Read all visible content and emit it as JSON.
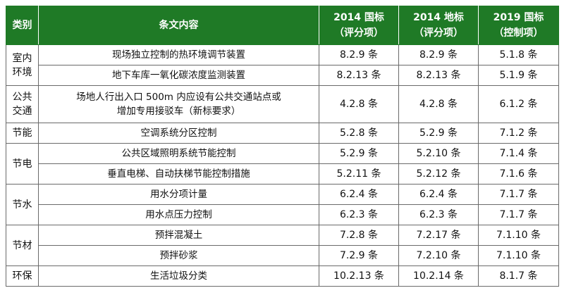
{
  "header": {
    "category": "类别",
    "content": "条文内容",
    "col1": [
      "2014 国标",
      "（评分项）"
    ],
    "col2": [
      "2014 地标",
      "（评分项）"
    ],
    "col3": [
      "2019 国标",
      "（控制项）"
    ]
  },
  "rows": [
    {
      "category": "室内环境",
      "content": "现场独立控制的热环境调节装置",
      "gb2014": "8.2.9 条",
      "db2014": "8.2.9 条",
      "gb2019": "5.1.8 条"
    },
    {
      "content": "地下车库一氧化碳浓度监测装置",
      "gb2014": "8.2.13 条",
      "db2014": "8.2.13 条",
      "gb2019": "5.1.9 条"
    },
    {
      "category": "公共交通",
      "content": "场地人行出入口 500m 内应设有公共交通站点或增加专用接驳车（新标要求）",
      "content_lines": [
        "场地人行出入口 500m 内应设有公共交通站点或",
        "增加专用接驳车（新标要求）"
      ],
      "gb2014": "4.2.8 条",
      "db2014": "4.2.8 条",
      "gb2019": "6.1.2 条"
    },
    {
      "category": "节能",
      "content": "空调系统分区控制",
      "gb2014": "5.2.8 条",
      "db2014": "5.2.9 条",
      "gb2019": "7.1.2 条"
    },
    {
      "category": "节电",
      "content": "公共区域照明系统节能控制",
      "gb2014": "5.2.9 条",
      "db2014": "5.2.10 条",
      "gb2019": "7.1.4 条"
    },
    {
      "content": "垂直电梯、自动扶梯节能控制措施",
      "gb2014": "5.2.11 条",
      "db2014": "5.2.12 条",
      "gb2019": "7.1.6 条"
    },
    {
      "category": "节水",
      "content": "用水分项计量",
      "gb2014": "6.2.4 条",
      "db2014": "6.2.4 条",
      "gb2019": "7.1.7 条"
    },
    {
      "content": "用水点压力控制",
      "gb2014": "6.2.3 条",
      "db2014": "6.2.3 条",
      "gb2019": "7.1.7 条"
    },
    {
      "category": "节材",
      "content": "预拌混凝土",
      "gb2014": "7.2.8 条",
      "db2014": "7.2.17 条",
      "gb2019": "7.1.10 条"
    },
    {
      "content": "预拌砂浆",
      "gb2014": "7.2.9 条",
      "db2014": "7.2.10 条",
      "gb2019": "7.1.10 条"
    },
    {
      "category": "环保",
      "content": "生活垃圾分类",
      "gb2014": "10.2.13 条",
      "db2014": "10.2.14 条",
      "gb2019": "8.1.7 条"
    }
  ],
  "category_split": {
    "室内环境": [
      "室内",
      "环境"
    ],
    "公共交通": [
      "公共",
      "交通"
    ]
  },
  "colors": {
    "header_bg": "#1f7a26",
    "header_text": "#ffffff",
    "border": "#6a6a6a"
  }
}
